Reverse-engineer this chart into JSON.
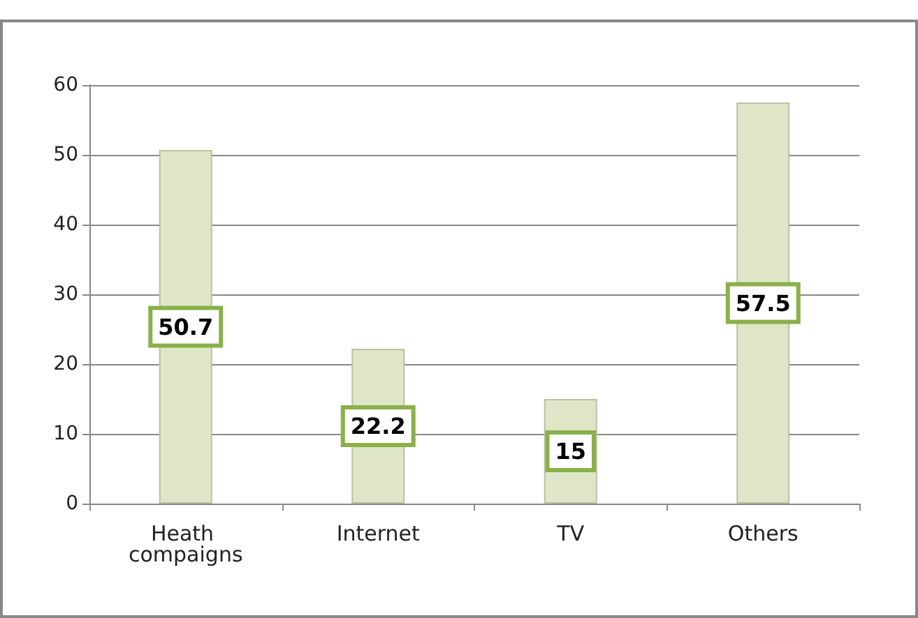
{
  "chart_data": {
    "type": "bar",
    "categories": [
      "Heath compaigns",
      "Internet",
      "TV",
      "Others"
    ],
    "values": [
      50.7,
      22.2,
      15,
      57.5
    ],
    "color": "#dfe6c8",
    "ylim": [
      0,
      60
    ],
    "yticks": [
      0,
      10,
      20,
      30,
      40,
      50,
      60
    ],
    "grid": "y",
    "data_labels": true
  }
}
